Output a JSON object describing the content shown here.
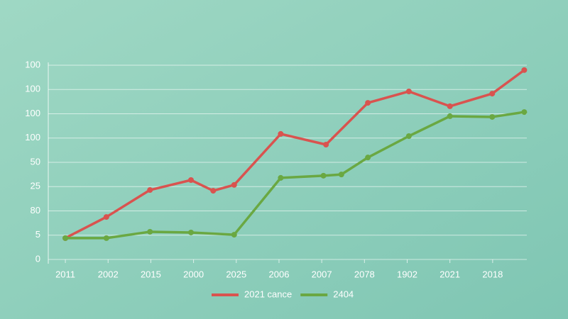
{
  "chart_data": {
    "type": "line",
    "xlim": [
      -0.4,
      10.8
    ],
    "xticks": [
      {
        "value": 0,
        "label": "2011"
      },
      {
        "value": 1,
        "label": "2002"
      },
      {
        "value": 2,
        "label": "2015"
      },
      {
        "value": 3,
        "label": "2000"
      },
      {
        "value": 4,
        "label": "2025"
      },
      {
        "value": 5,
        "label": "2006"
      },
      {
        "value": 6,
        "label": "2007"
      },
      {
        "value": 7,
        "label": "2078"
      },
      {
        "value": 8,
        "label": "1902"
      },
      {
        "value": 9,
        "label": "2021"
      },
      {
        "value": 10,
        "label": "2018"
      }
    ],
    "ylim": [
      0,
      8
    ],
    "yticks": [
      0,
      {
        "value": 1,
        "label": "5"
      },
      {
        "value": 2,
        "label": "80"
      },
      {
        "value": 3,
        "label": "25"
      },
      {
        "value": 4,
        "label": "50"
      },
      {
        "value": 5,
        "label": "100"
      },
      {
        "value": 6,
        "label": "100"
      },
      {
        "value": 7,
        "label": "100"
      },
      {
        "value": 8,
        "label": "100"
      }
    ],
    "grid": true,
    "legend": "bottom",
    "series": [
      {
        "name": "2021 cance",
        "color": "#d9534f",
        "x": [
          0,
          0.96,
          1.98,
          2.94,
          3.46,
          3.95,
          5.04,
          6.1,
          7.08,
          8.04,
          9,
          9.99,
          10.74
        ],
        "values": [
          0.88,
          1.75,
          2.86,
          3.27,
          2.83,
          3.07,
          5.17,
          4.73,
          6.45,
          6.92,
          6.31,
          6.83,
          7.8
        ]
      },
      {
        "name": "2404",
        "color": "#6aa842",
        "x": [
          0,
          0.96,
          1.98,
          2.94,
          3.95,
          5.04,
          6.04,
          6.46,
          7.08,
          8.04,
          9,
          9.99,
          10.74
        ],
        "values": [
          0.88,
          0.88,
          1.14,
          1.11,
          1.02,
          3.36,
          3.45,
          3.5,
          4.2,
          5.08,
          5.9,
          5.87,
          6.07
        ]
      }
    ]
  }
}
